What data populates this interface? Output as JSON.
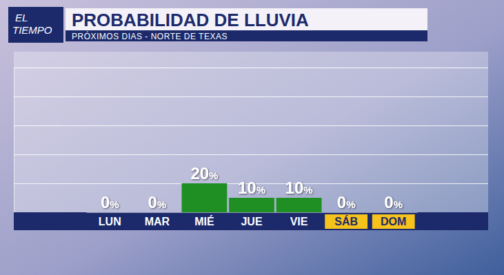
{
  "chart_data": {
    "type": "bar",
    "title": "PROBABILIDAD DE LLUVIA",
    "subtitle": "PRÓXIMOS DIAS - NORTE DE TEXAS",
    "annotations": [
      "EL TIEMPO"
    ],
    "categories": [
      "LUN",
      "MAR",
      "MIÉ",
      "JUE",
      "VIE",
      "SÁB",
      "DOM"
    ],
    "values": [
      0,
      0,
      20,
      10,
      10,
      0,
      0
    ],
    "value_labels": [
      "0%",
      "0%",
      "20%",
      "10%",
      "10%",
      "0%",
      "0%"
    ],
    "color": "#1f8f24",
    "ylim": [
      0,
      100
    ],
    "yticks": [
      0,
      20,
      40,
      60,
      80,
      100
    ],
    "grid": true,
    "data_labels": true,
    "tick_labels": "x"
  }
}
